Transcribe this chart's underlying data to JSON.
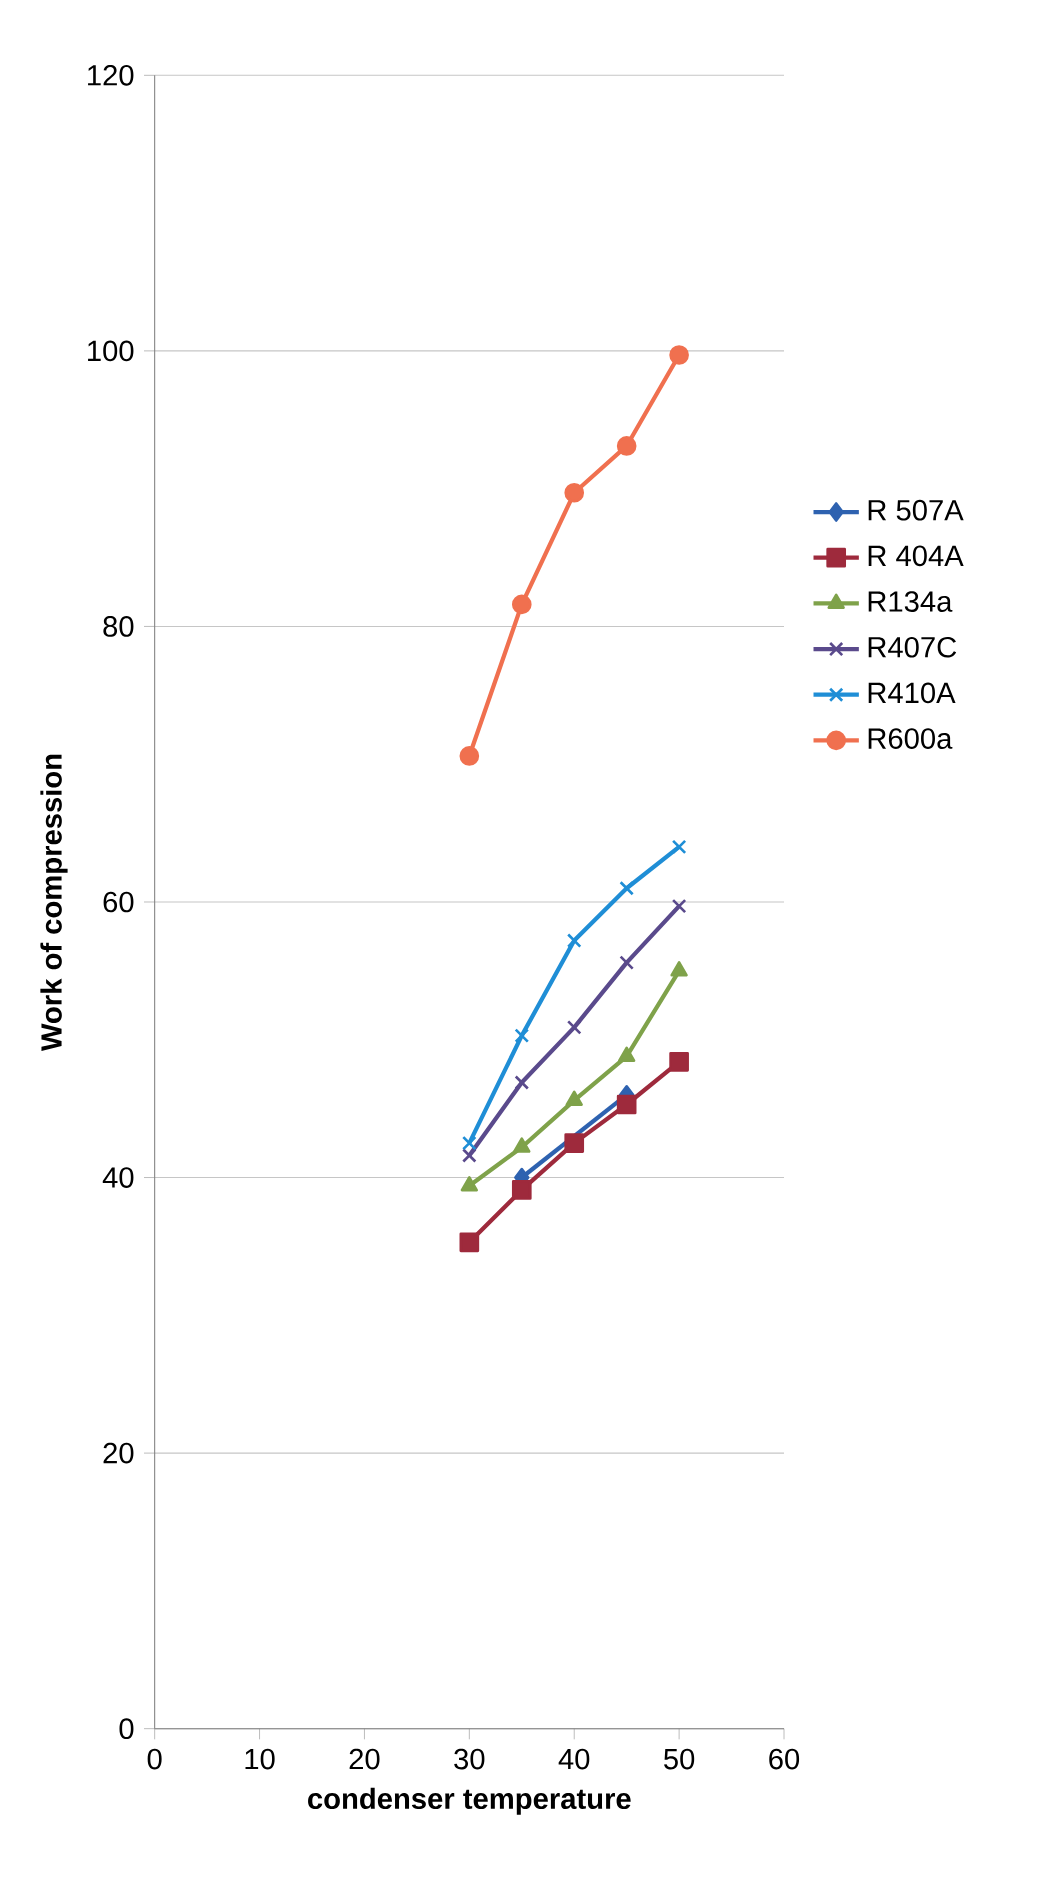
{
  "chart_data": {
    "type": "line",
    "xlabel": "condenser temperature",
    "ylabel": "Work of compression",
    "x": [
      30,
      35,
      40,
      45,
      50
    ],
    "series": [
      {
        "name": "R 507A",
        "color": "#2e62b0",
        "marker": "diamond",
        "values": [
          null,
          40,
          null,
          46,
          null
        ]
      },
      {
        "name": "R 404A",
        "color": "#9e2a3c",
        "marker": "square",
        "values": [
          35.3,
          39.1,
          42.5,
          45.3,
          48.4
        ]
      },
      {
        "name": "R134a",
        "color": "#7fa24a",
        "marker": "triangle",
        "values": [
          39.4,
          42.2,
          45.6,
          48.8,
          55
        ]
      },
      {
        "name": "R407C",
        "color": "#5a4a8c",
        "marker": "cross",
        "values": [
          41.6,
          46.9,
          50.9,
          55.6,
          59.7
        ]
      },
      {
        "name": "R410A",
        "color": "#1f8ed6",
        "marker": "cross",
        "values": [
          42.5,
          50.3,
          57.2,
          61,
          64
        ]
      },
      {
        "name": "R600a",
        "color": "#f0704f",
        "marker": "circle",
        "values": [
          70.6,
          81.6,
          89.7,
          93.1,
          99.7
        ]
      }
    ],
    "xlim": [
      0,
      60
    ],
    "xticks": [
      0,
      10,
      20,
      30,
      40,
      50,
      60
    ],
    "ylim": [
      0,
      120
    ],
    "yticks": [
      0,
      20,
      40,
      60,
      80,
      100,
      120
    ],
    "grid": "y",
    "legend": "right",
    "line_style": "solid"
  }
}
